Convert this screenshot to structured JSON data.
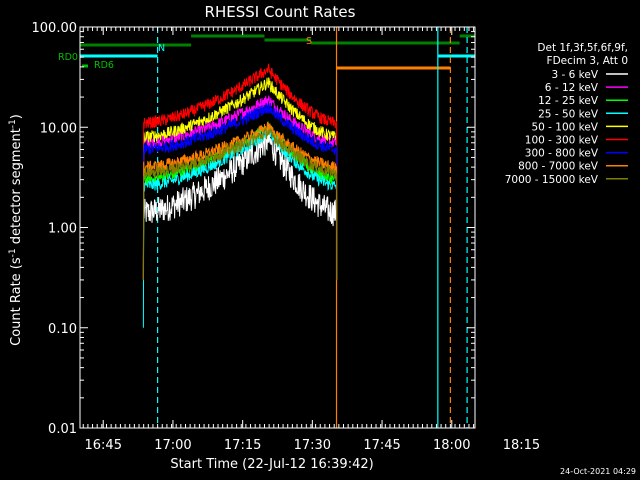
{
  "chart_data": {
    "type": "line",
    "title": "RHESSI Count Rates",
    "xlabel": "Start Time (22-Jul-12 16:39:42)",
    "ylabel_prefix": "Count Rate (s",
    "ylabel_sup": "-1",
    "ylabel_suffix": " detector segment",
    "ylabel_close": ")",
    "x_domain_minutes": [
      16.3,
      101.3
    ],
    "y_scale": "log",
    "ylim": [
      0.01,
      100.0
    ],
    "x_ticks": [
      {
        "label": "16:45",
        "t": 21.3
      },
      {
        "label": "17:00",
        "t": 36.3
      },
      {
        "label": "17:15",
        "t": 51.3
      },
      {
        "label": "17:30",
        "t": 66.3
      },
      {
        "label": "17:45",
        "t": 81.3
      },
      {
        "label": "18:00",
        "t": 96.3
      },
      {
        "label": "18:15",
        "t": 111.3
      }
    ],
    "y_ticks": [
      {
        "label": "0.01",
        "v": 0.01
      },
      {
        "label": "0.10",
        "v": 0.1
      },
      {
        "label": "1.00",
        "v": 1
      },
      {
        "label": "10.00",
        "v": 10
      },
      {
        "label": "100.00",
        "v": 100
      }
    ],
    "legend_header": [
      "Det 1f,3f,5f,6f,9f,",
      "FDecim 3, Att 0"
    ],
    "legend_position": "right",
    "series": [
      {
        "name": "3 - 6 keV",
        "color": "#ffffff",
        "peak": 7.5,
        "edge": 1.4
      },
      {
        "name": "6 - 12 keV",
        "color": "#ff00ff",
        "peak": 19,
        "edge": 7
      },
      {
        "name": "12 - 25 keV",
        "color": "#00ff00",
        "peak": 10,
        "edge": 3
      },
      {
        "name": "25 - 50 keV",
        "color": "#00ffff",
        "peak": 9,
        "edge": 2.6
      },
      {
        "name": "50 - 100 keV",
        "color": "#ffff00",
        "peak": 28,
        "edge": 8
      },
      {
        "name": "100 - 300 keV",
        "color": "#ff0000",
        "peak": 38,
        "edge": 11
      },
      {
        "name": "300 - 800 keV",
        "color": "#0000ff",
        "peak": 16,
        "edge": 6
      },
      {
        "name": "800 - 7000 keV",
        "color": "#ff8000",
        "peak": 10,
        "edge": 4
      },
      {
        "name": "7000 - 15000 keV",
        "color": "#808000",
        "peak": 9,
        "edge": 3.5
      }
    ],
    "time_series_window": [
      30.0,
      71.5
    ],
    "peak_time": 56.8,
    "state_bars": [
      {
        "label": "RD0",
        "color": "#008000",
        "segments": [
          [
            16.3,
            40.2,
            45
          ],
          [
            40.2,
            56.0,
            36
          ],
          [
            56.0,
            66.0,
            40
          ],
          [
            66.0,
            98.0,
            43
          ],
          [
            98.0,
            101.3,
            36
          ]
        ]
      },
      {
        "label": "RD6",
        "color": "#008000",
        "segments": []
      },
      {
        "label": "N",
        "color": "#00ffff",
        "segments": [
          [
            16.3,
            33.0,
            56
          ],
          [
            93.3,
            101.3,
            56
          ]
        ]
      },
      {
        "label": "S",
        "color": "#ff8000",
        "segments": [
          [
            71.5,
            96.0,
            68
          ]
        ]
      }
    ],
    "markers": [
      {
        "t": 33.0,
        "color": "#00ffff",
        "style": "dashed"
      },
      {
        "t": 71.5,
        "color": "#ff8000",
        "style": "solid"
      },
      {
        "t": 93.3,
        "color": "#00ffff",
        "style": "solid"
      },
      {
        "t": 96.0,
        "color": "#ff8000",
        "style": "dashed"
      },
      {
        "t": 99.6,
        "color": "#00ffff",
        "style": "dashed"
      }
    ]
  },
  "footer": {
    "timestamp": "24-Oct-2021 04:29"
  }
}
